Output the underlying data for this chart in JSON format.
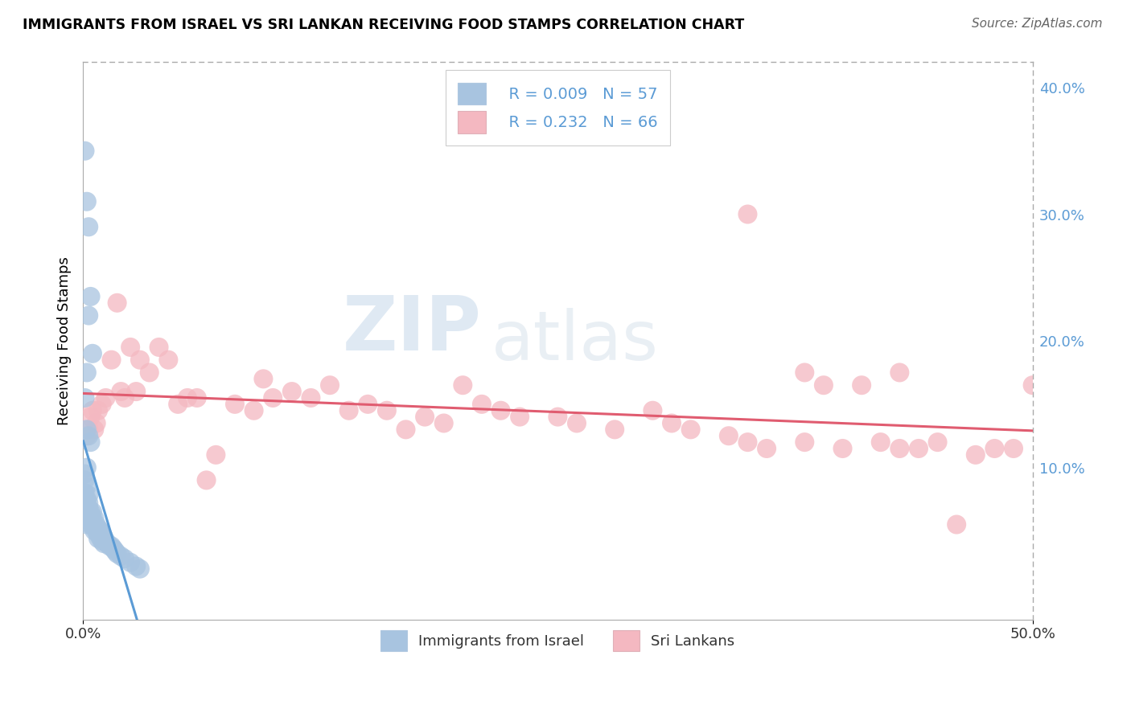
{
  "title": "IMMIGRANTS FROM ISRAEL VS SRI LANKAN RECEIVING FOOD STAMPS CORRELATION CHART",
  "source": "Source: ZipAtlas.com",
  "ylabel": "Receiving Food Stamps",
  "right_yticks": [
    "40.0%",
    "30.0%",
    "20.0%",
    "10.0%"
  ],
  "right_ytick_vals": [
    0.4,
    0.3,
    0.2,
    0.1
  ],
  "legend_label1": "Immigrants from Israel",
  "legend_label2": "Sri Lankans",
  "legend_r1": "R = 0.009",
  "legend_n1": "N = 57",
  "legend_r2": "R = 0.232",
  "legend_n2": "N = 66",
  "color_israel": "#a8c4e0",
  "color_srilanka": "#f4b8c1",
  "line_color_israel": "#5b9bd5",
  "line_color_srilanka": "#e05c70",
  "watermark_zip": "ZIP",
  "watermark_atlas": "atlas",
  "xmin": 0.0,
  "xmax": 0.5,
  "ymin": -0.02,
  "ymax": 0.42,
  "israel_x": [
    0.001,
    0.001,
    0.001,
    0.002,
    0.002,
    0.002,
    0.002,
    0.002,
    0.002,
    0.003,
    0.003,
    0.003,
    0.003,
    0.004,
    0.004,
    0.004,
    0.005,
    0.005,
    0.005,
    0.006,
    0.006,
    0.006,
    0.007,
    0.007,
    0.008,
    0.008,
    0.008,
    0.009,
    0.009,
    0.01,
    0.01,
    0.011,
    0.011,
    0.012,
    0.013,
    0.014,
    0.015,
    0.016,
    0.017,
    0.018,
    0.02,
    0.022,
    0.025,
    0.028,
    0.03,
    0.001,
    0.002,
    0.003,
    0.004,
    0.005,
    0.001,
    0.002,
    0.003,
    0.002,
    0.003,
    0.004,
    0.002
  ],
  "israel_y": [
    0.095,
    0.09,
    0.08,
    0.085,
    0.075,
    0.07,
    0.065,
    0.06,
    0.055,
    0.078,
    0.072,
    0.068,
    0.062,
    0.065,
    0.06,
    0.055,
    0.065,
    0.06,
    0.055,
    0.06,
    0.055,
    0.05,
    0.055,
    0.05,
    0.052,
    0.048,
    0.044,
    0.05,
    0.045,
    0.048,
    0.042,
    0.045,
    0.04,
    0.042,
    0.04,
    0.038,
    0.038,
    0.036,
    0.034,
    0.032,
    0.03,
    0.028,
    0.025,
    0.022,
    0.02,
    0.155,
    0.175,
    0.22,
    0.235,
    0.19,
    0.35,
    0.31,
    0.29,
    0.13,
    0.125,
    0.12,
    0.1
  ],
  "srilanka_x": [
    0.002,
    0.003,
    0.004,
    0.005,
    0.006,
    0.007,
    0.008,
    0.01,
    0.012,
    0.015,
    0.018,
    0.02,
    0.022,
    0.025,
    0.028,
    0.03,
    0.035,
    0.04,
    0.045,
    0.05,
    0.055,
    0.06,
    0.065,
    0.07,
    0.08,
    0.09,
    0.095,
    0.1,
    0.11,
    0.12,
    0.13,
    0.14,
    0.15,
    0.16,
    0.17,
    0.18,
    0.19,
    0.2,
    0.21,
    0.22,
    0.23,
    0.25,
    0.26,
    0.28,
    0.3,
    0.31,
    0.32,
    0.34,
    0.35,
    0.36,
    0.38,
    0.4,
    0.42,
    0.43,
    0.44,
    0.45,
    0.46,
    0.47,
    0.48,
    0.49,
    0.5,
    0.38,
    0.39,
    0.41,
    0.35,
    0.43
  ],
  "srilanka_y": [
    0.125,
    0.13,
    0.14,
    0.145,
    0.13,
    0.135,
    0.145,
    0.15,
    0.155,
    0.185,
    0.23,
    0.16,
    0.155,
    0.195,
    0.16,
    0.185,
    0.175,
    0.195,
    0.185,
    0.15,
    0.155,
    0.155,
    0.09,
    0.11,
    0.15,
    0.145,
    0.17,
    0.155,
    0.16,
    0.155,
    0.165,
    0.145,
    0.15,
    0.145,
    0.13,
    0.14,
    0.135,
    0.165,
    0.15,
    0.145,
    0.14,
    0.14,
    0.135,
    0.13,
    0.145,
    0.135,
    0.13,
    0.125,
    0.12,
    0.115,
    0.12,
    0.115,
    0.12,
    0.115,
    0.115,
    0.12,
    0.055,
    0.11,
    0.115,
    0.115,
    0.165,
    0.175,
    0.165,
    0.165,
    0.3,
    0.175
  ]
}
